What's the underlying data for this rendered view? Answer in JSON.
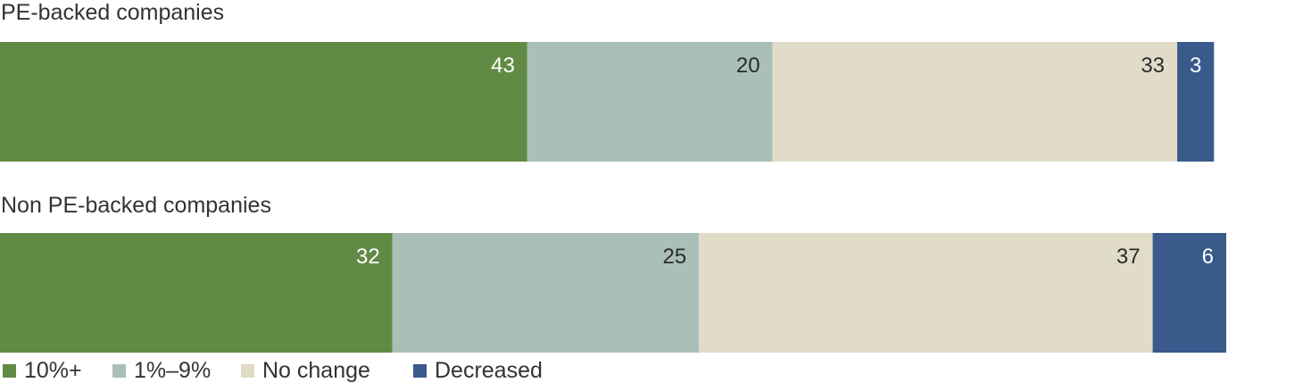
{
  "chart_data": {
    "type": "bar",
    "orientation": "horizontal",
    "stacked": true,
    "title": "",
    "xlabel": "",
    "ylabel": "",
    "xlim": [
      0,
      100
    ],
    "grid": false,
    "legend_position": "bottom-left",
    "categories": [
      "PE-backed companies",
      "Non PE-backed companies"
    ],
    "series": [
      {
        "name": "10%+",
        "values": [
          43,
          32
        ],
        "color": "#618b45",
        "label_color": "#ffffff"
      },
      {
        "name": "1%–9%",
        "values": [
          20,
          25
        ],
        "color": "#aabfb7",
        "label_color": "#2b2b2b"
      },
      {
        "name": "No change",
        "values": [
          33,
          37
        ],
        "color": "#e1dcc8",
        "label_color": "#2b2b2b"
      },
      {
        "name": "Decreased",
        "values": [
          3,
          6
        ],
        "color": "#3a5a8c",
        "label_color": "#ffffff"
      }
    ]
  }
}
